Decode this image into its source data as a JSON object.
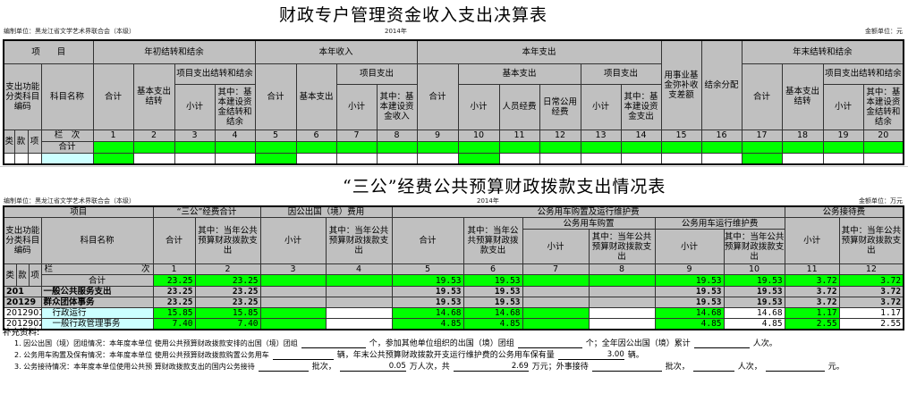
{
  "table1": {
    "title": "财政专户管理资金收入支出决算表",
    "unit_org": "编制单位：黑龙江省文学艺术界联合会（本级）",
    "year": "2014年",
    "amount_unit": "金额单位：元",
    "headers": {
      "item": "项　　目",
      "begin_balance": "年初结转和结余",
      "current_income": "本年收入",
      "current_expense": "本年支出",
      "end_balance": "年末结转和结余",
      "func_code": "支出功能分类科目编码",
      "subject_name": "科目名称",
      "total": "合计",
      "basic_carry": "基本支出结转",
      "project_carry": "项目支出结转和结余",
      "subtotal": "小计",
      "of_which_capital_carry": "其中：基本建设资金结转和结余",
      "basic_expense": "基本支出",
      "project_expense": "项目支出",
      "of_which_capital_income": "其中：基本建设资金收入",
      "personnel": "人员经费",
      "daily_public": "日常公用经费",
      "of_which_capital_expense": "其中：基本建设资金支出",
      "fund_offset": "用事业基金弥补收支差额",
      "surplus_alloc": "结余分配",
      "lei": "类",
      "kuan": "款",
      "xiang": "项",
      "column_no": "栏　次",
      "total_row": "合计"
    },
    "column_numbers": [
      "1",
      "2",
      "3",
      "4",
      "5",
      "6",
      "7",
      "8",
      "9",
      "10",
      "11",
      "12",
      "13",
      "14",
      "15",
      "16",
      "17",
      "18",
      "19",
      "20"
    ]
  },
  "table2": {
    "title": "“三公”经费公共预算财政拨款支出情况表",
    "unit_org": "编制单位：黑龙江省文学艺术界联合会（本级）",
    "year": "2014年",
    "amount_unit": "金额单位：万元",
    "headers": {
      "item": "项目",
      "sangong_total": "“三公”经费合计",
      "abroad": "因公出国（境）费用",
      "vehicle": "公务用车购置及运行维护费",
      "vehicle_purchase": "公务用车购置",
      "vehicle_operation": "公务用车运行维护费",
      "reception": "公务接待费",
      "func_code": "支出功能分类科目编码",
      "subject_name": "科目名称",
      "total": "合计",
      "subtotal": "小计",
      "of_which_a": "其中：当年公共预算财政拨款支出",
      "lei": "类",
      "kuan": "款",
      "xiang": "项",
      "lan": "栏",
      "ci": "次"
    },
    "column_numbers": [
      "1",
      "2",
      "3",
      "4",
      "5",
      "6",
      "7",
      "8",
      "9",
      "10",
      "11",
      "12"
    ],
    "rows": [
      {
        "code": "",
        "name": "合计",
        "values": [
          "23.25",
          "23.25",
          "",
          "",
          "19.53",
          "19.53",
          "",
          "",
          "19.53",
          "19.53",
          "3.72",
          "3.72"
        ]
      },
      {
        "code": "201",
        "name": "一般公共服务支出",
        "values": [
          "23.25",
          "23.25",
          "",
          "",
          "19.53",
          "19.53",
          "",
          "",
          "19.53",
          "19.53",
          "3.72",
          "3.72"
        ]
      },
      {
        "code": "20129",
        "name": "群众团体事务",
        "values": [
          "23.25",
          "23.25",
          "",
          "",
          "19.53",
          "19.53",
          "",
          "",
          "19.53",
          "19.53",
          "3.72",
          "3.72"
        ]
      },
      {
        "code": "2012901",
        "name": "行政运行",
        "values": [
          "15.85",
          "15.85",
          "",
          "",
          "14.68",
          "14.68",
          "",
          "",
          "14.68",
          "14.68",
          "1.17",
          "1.17"
        ]
      },
      {
        "code": "2012902",
        "name": "一般行政管理事务",
        "values": [
          "7.40",
          "7.40",
          "",
          "",
          "4.85",
          "4.85",
          "",
          "",
          "4.85",
          "4.85",
          "2.55",
          "2.55"
        ]
      }
    ],
    "supplement": {
      "label": "补充资料:",
      "line1": [
        "1. 因公出国（境）团组情况：本年度本单位 使用公共预算财政拨款安排的出国（境）团组",
        "",
        "个，参加其他单位组织的出国（境）团组",
        "",
        "个；全年因公出国（境）累计",
        "",
        "人次。"
      ],
      "line2": [
        "2. 公务用车购置及保有情况：本年度本单位 使用公共预算财政拨款购置公务用车",
        "",
        "辆，年末公共预算财政拨款开支运行维护费的公务用车保有量",
        "3.00",
        "辆。"
      ],
      "line3": [
        "3. 公务接待情况：本年度本单位使用公共预 算财政拨款支出的国内公务接待",
        "",
        "批次，",
        "0.05",
        "万人次，共",
        "2.69",
        "万元；外事接待",
        "",
        "批次，",
        "",
        "人次，",
        "",
        "元。"
      ]
    }
  },
  "colors": {
    "header": "#c0c0c0",
    "input": "#00ff00",
    "name_cell": "#ccffff"
  }
}
